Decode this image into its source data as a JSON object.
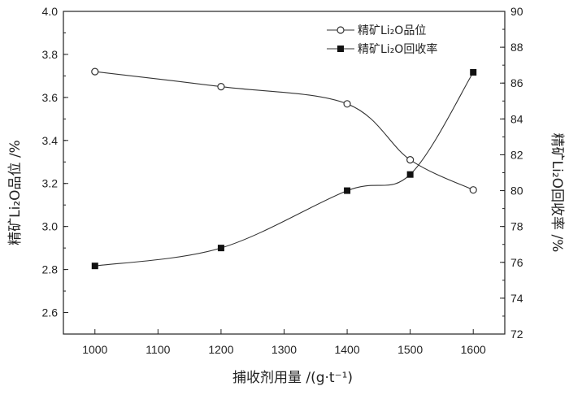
{
  "chart_data": {
    "type": "line",
    "x": [
      1000,
      1200,
      1400,
      1500,
      1600
    ],
    "x_ticks": [
      "1000",
      "1100",
      "1200",
      "1300",
      "1400",
      "1500",
      "1600"
    ],
    "xlim": [
      950,
      1650
    ],
    "xlabel": "捕收剂用量 /(g·t⁻¹)",
    "left_axis": {
      "label": "精矿Li₂O品位 /%",
      "ylim": [
        2.5,
        4.0
      ],
      "ticks": [
        "2.6",
        "2.8",
        "3.0",
        "3.2",
        "3.4",
        "3.6",
        "3.8",
        "4.0"
      ]
    },
    "right_axis": {
      "label": "精矿Li₂O回收率 /%",
      "ylim": [
        72,
        90
      ],
      "ticks": [
        "72",
        "74",
        "76",
        "78",
        "80",
        "82",
        "84",
        "86",
        "88",
        "90"
      ]
    },
    "series": [
      {
        "name": "精矿Li₂O品位",
        "axis": "left",
        "marker": "open-circle",
        "values": [
          3.72,
          3.65,
          3.57,
          3.31,
          3.17
        ]
      },
      {
        "name": "精矿Li₂O回收率",
        "axis": "right",
        "marker": "filled-square",
        "values": [
          75.8,
          76.8,
          80.0,
          80.9,
          86.6
        ]
      }
    ],
    "legend_position": "top-right",
    "grid": false
  }
}
